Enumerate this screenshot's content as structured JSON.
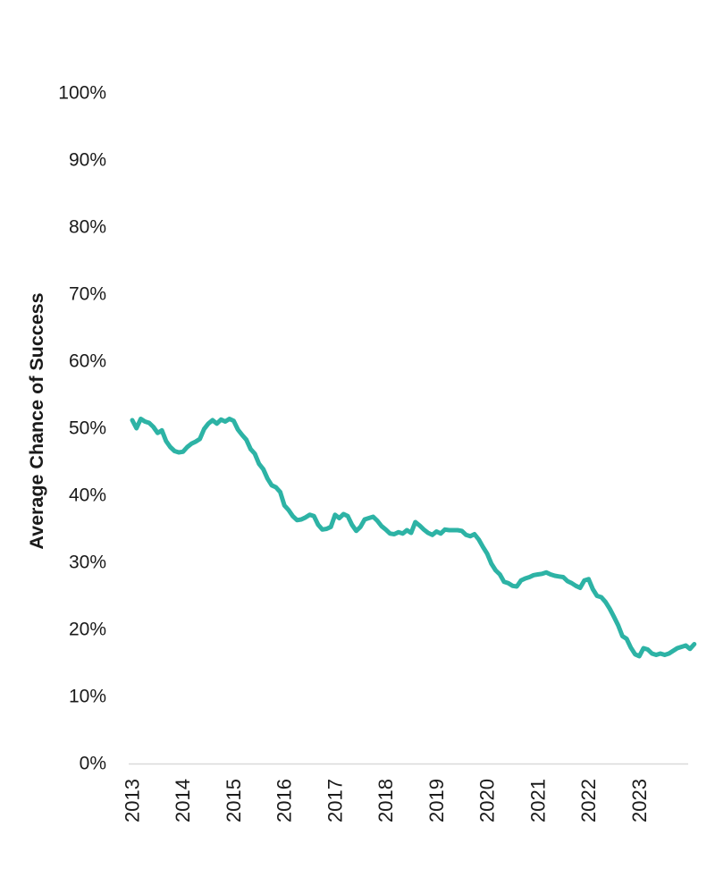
{
  "page": {
    "background_color": "#ffffff",
    "text_color": "#1a1a1a"
  },
  "chart_data": {
    "type": "line",
    "title": "",
    "xlabel": "",
    "ylabel": "Average Chance of Success",
    "grid": "off",
    "legend": "none",
    "ylim": [
      0,
      100
    ],
    "axis_line_color": "#d9d9d9",
    "text_color": "#1a1a1a",
    "y_axis": {
      "unit": "%",
      "tick_values": [
        100,
        90,
        80,
        70,
        60,
        50,
        40,
        30,
        20,
        10,
        0
      ],
      "tick_labels": [
        "100%",
        "90%",
        "80%",
        "70%",
        "60%",
        "50%",
        "40%",
        "30%",
        "20%",
        "10%",
        "0%"
      ]
    },
    "x_axis": {
      "tick_labels": [
        "2013",
        "2014",
        "2015",
        "2016",
        "2017",
        "2018",
        "2019",
        "2020",
        "2021",
        "2022",
        "2023"
      ],
      "rotation_degrees": -90
    },
    "series": [
      {
        "name": "Average Chance of Success",
        "color": "#2db3a5",
        "line_width": 5,
        "x_start": "2013-01",
        "x_interval": "monthly",
        "values": [
          51.2,
          50.0,
          51.4,
          51.0,
          50.8,
          50.2,
          49.3,
          49.7,
          48.1,
          47.2,
          46.6,
          46.4,
          46.5,
          47.2,
          47.7,
          48.0,
          48.4,
          49.9,
          50.7,
          51.2,
          50.7,
          51.3,
          51.0,
          51.4,
          51.1,
          49.8,
          49.0,
          48.3,
          46.9,
          46.2,
          44.7,
          43.9,
          42.5,
          41.5,
          41.2,
          40.5,
          38.5,
          37.8,
          36.9,
          36.3,
          36.4,
          36.7,
          37.1,
          36.9,
          35.6,
          34.9,
          35.0,
          35.3,
          37.1,
          36.6,
          37.2,
          36.9,
          35.6,
          34.7,
          35.3,
          36.4,
          36.6,
          36.8,
          36.2,
          35.4,
          34.9,
          34.3,
          34.2,
          34.5,
          34.3,
          34.8,
          34.4,
          36.0,
          35.5,
          34.9,
          34.4,
          34.1,
          34.6,
          34.3,
          34.9,
          34.8,
          34.8,
          34.8,
          34.7,
          34.1,
          33.9,
          34.2,
          33.4,
          32.3,
          31.3,
          29.8,
          28.8,
          28.2,
          27.1,
          26.9,
          26.5,
          26.4,
          27.3,
          27.6,
          27.8,
          28.1,
          28.2,
          28.3,
          28.5,
          28.2,
          28.0,
          27.9,
          27.8,
          27.2,
          26.9,
          26.5,
          26.2,
          27.3,
          27.5,
          26.0,
          25.0,
          24.8,
          24.1,
          23.1,
          21.9,
          20.6,
          19.0,
          18.6,
          17.3,
          16.3,
          16.0,
          17.2,
          17.0,
          16.4,
          16.2,
          16.4,
          16.2,
          16.4,
          16.8,
          17.2,
          17.4,
          17.6,
          17.1,
          17.8
        ]
      }
    ]
  }
}
